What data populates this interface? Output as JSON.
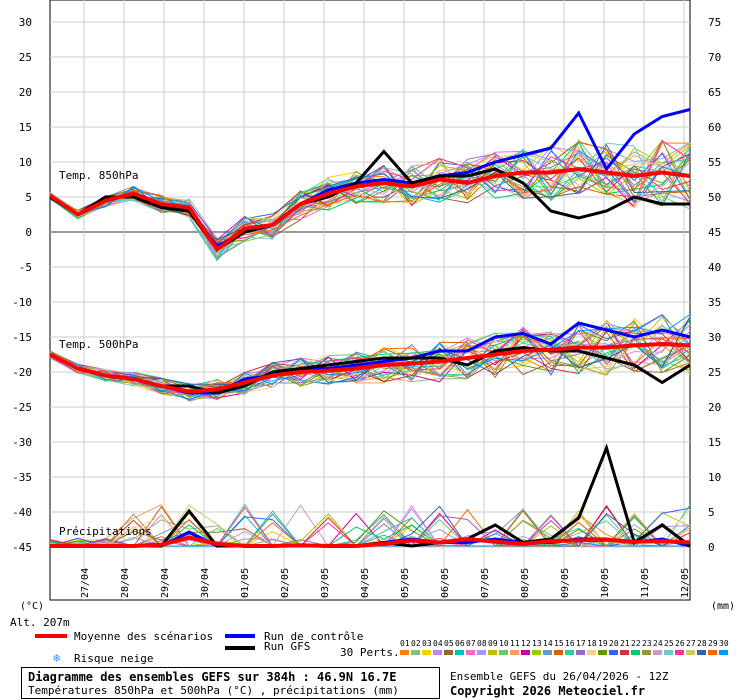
{
  "chart_data": {
    "type": "line",
    "title": "Diagramme des ensembles GEFS sur 384h : 46.9N 16.7E",
    "subtitle": "Températures 850hPa et 500hPa (°C) , précipitations (mm)",
    "left_axis": {
      "unit": "(°C)",
      "ticks": [
        30,
        25,
        20,
        15,
        10,
        5,
        0,
        -5,
        -10,
        -15,
        -20,
        -25,
        -30,
        -35,
        -40,
        -45
      ]
    },
    "right_axis": {
      "unit": "(mm)",
      "ticks": [
        75,
        70,
        65,
        60,
        55,
        50,
        45,
        40,
        35,
        30,
        25,
        20,
        15,
        10,
        5,
        0
      ]
    },
    "dates": [
      "27/04",
      "28/04",
      "29/04",
      "30/04",
      "01/05",
      "02/05",
      "03/05",
      "04/05",
      "05/05",
      "06/05",
      "07/05",
      "08/05",
      "09/05",
      "10/05",
      "11/05",
      "12/05"
    ],
    "panel_labels": [
      "Temp. 850hPa",
      "Temp. 500hPa",
      "Précipitations"
    ],
    "altitude": "Alt. 207m",
    "series": [
      {
        "name": "Moyenne des scénarios",
        "color": "#ff0000",
        "t850": [
          5.2,
          2.5,
          4.5,
          5.5,
          4,
          3.5,
          -2.5,
          0.5,
          1,
          4,
          5.5,
          6.5,
          7,
          6.5,
          7.5,
          7,
          8,
          8.5,
          8.5,
          9,
          8.5,
          8,
          8.5,
          8
        ],
        "t500": [
          -17.5,
          -19.5,
          -20.5,
          -21,
          -22,
          -22.8,
          -22.5,
          -21.5,
          -20.5,
          -20,
          -19.8,
          -19.5,
          -19,
          -18.8,
          -18.5,
          -18,
          -17.5,
          -17,
          -16.8,
          -16.5,
          -16.5,
          -16.2,
          -16,
          -16.2
        ],
        "precip": [
          0,
          0,
          0,
          0,
          0.2,
          1.2,
          0.3,
          0,
          0,
          0.1,
          0,
          0,
          0.3,
          0.8,
          0.5,
          1,
          0.6,
          0.3,
          0.7,
          0.8,
          0.9,
          0.6,
          0.7,
          0.5
        ]
      },
      {
        "name": "Run de contrôle",
        "color": "#0000ff",
        "t850": [
          5,
          2.5,
          5,
          5,
          4,
          3,
          -2,
          0,
          1,
          4,
          6,
          7,
          7.5,
          7,
          8,
          8.5,
          10,
          11,
          12,
          17,
          9,
          14,
          16.5,
          17.5
        ],
        "t500": [
          -17.5,
          -19.5,
          -20.5,
          -21,
          -22,
          -23,
          -23,
          -21,
          -20.5,
          -19.5,
          -19.5,
          -19,
          -18.5,
          -18,
          -17,
          -17,
          -15,
          -14.5,
          -16,
          -13,
          -14,
          -15,
          -14,
          -15
        ],
        "precip": [
          0,
          0,
          0,
          0,
          0,
          2,
          0,
          0,
          0,
          0,
          0,
          0,
          0.5,
          1,
          0.5,
          0.5,
          1,
          0.5,
          0.5,
          1,
          1,
          0.5,
          1,
          0
        ]
      },
      {
        "name": "Run GFS",
        "color": "#000000",
        "t850": [
          5,
          2.5,
          5,
          5,
          3.5,
          3,
          -2.5,
          0,
          1,
          4,
          5,
          7,
          11.5,
          7,
          8,
          8,
          9,
          7,
          3,
          2,
          3,
          5,
          4,
          4
        ],
        "t500": [
          -17.5,
          -19.5,
          -20.5,
          -21,
          -22,
          -22,
          -23,
          -22,
          -20,
          -19.5,
          -19,
          -18.5,
          -18,
          -18,
          -18,
          -19,
          -17,
          -16.5,
          -17,
          -17,
          -18,
          -19,
          -21.5,
          -19
        ],
        "precip": [
          0,
          0,
          0,
          0,
          0,
          5,
          0,
          0,
          0,
          0,
          0,
          0,
          0.5,
          0,
          0.5,
          1,
          3,
          0.5,
          1,
          4,
          14,
          0.5,
          3,
          0
        ]
      }
    ],
    "legend_extra": "Risque neige",
    "perts_label": "30 Perts.",
    "perts": [
      "01",
      "02",
      "03",
      "04",
      "05",
      "06",
      "07",
      "08",
      "09",
      "10",
      "11",
      "12",
      "13",
      "14",
      "15",
      "16",
      "17",
      "18",
      "19",
      "20",
      "21",
      "22",
      "23",
      "24",
      "25",
      "26",
      "27",
      "28",
      "29",
      "30"
    ],
    "pert_colors": [
      "#ff8000",
      "#80c080",
      "#ffcc00",
      "#c080ff",
      "#996633",
      "#00c0c0",
      "#ff66cc",
      "#9999ff",
      "#c0c000",
      "#66cc66",
      "#ff9966",
      "#cc0099",
      "#99cc00",
      "#6699cc",
      "#cc6600",
      "#33cc99",
      "#9966cc",
      "#ffcc99",
      "#669900",
      "#3366ff",
      "#cc3333",
      "#00cc66",
      "#999933",
      "#cc99cc",
      "#66cccc",
      "#ff3399",
      "#cccc66",
      "#336699",
      "#ff6600",
      "#0099ff"
    ]
  },
  "footer": {
    "title": "Diagramme des ensembles GEFS sur 384h : 46.9N 16.7E",
    "subtitle": "Températures 850hPa et 500hPa (°C) , précipitations (mm)",
    "run": "Ensemble GEFS du 26/04/2026 - 12Z",
    "copyright": "Copyright 2026 Meteociel.fr"
  }
}
